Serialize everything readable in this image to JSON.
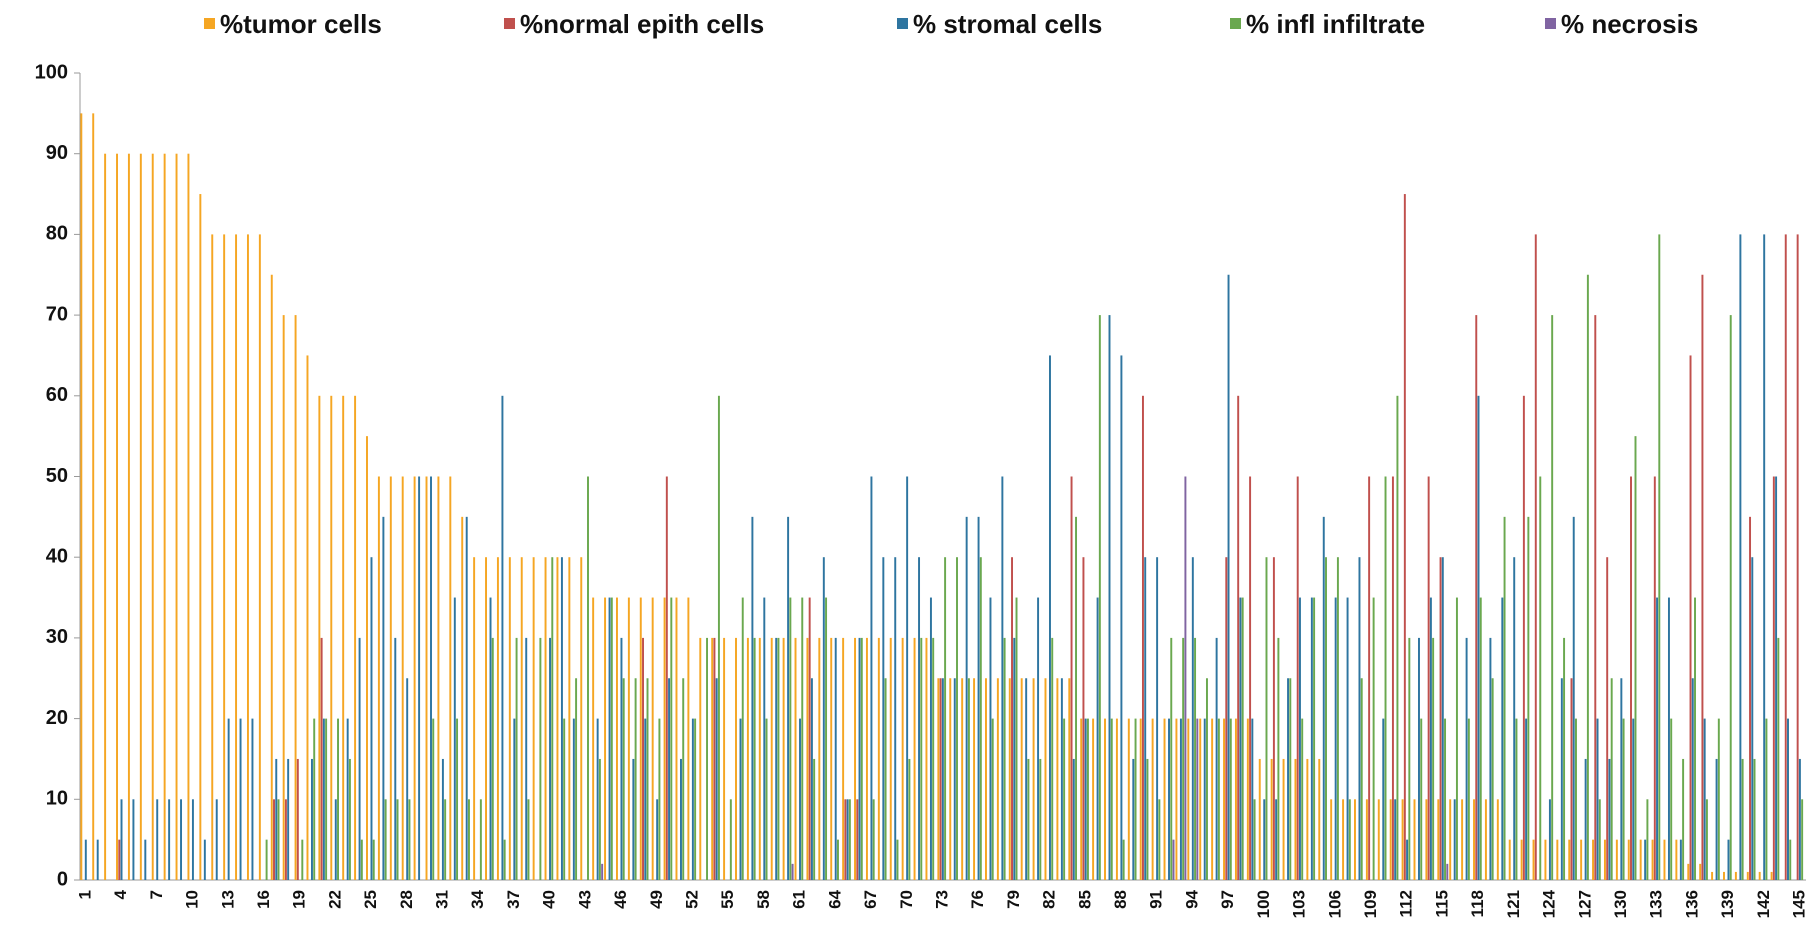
{
  "chart_data": {
    "type": "bar",
    "categories": [
      "1",
      null,
      null,
      "4",
      null,
      null,
      "7",
      null,
      null,
      "10",
      null,
      null,
      "13",
      null,
      null,
      "16",
      null,
      null,
      "19",
      null,
      null,
      "22",
      null,
      null,
      "25",
      null,
      null,
      "28",
      null,
      null,
      "31",
      null,
      null,
      "34",
      null,
      null,
      "37",
      null,
      null,
      "40",
      null,
      null,
      "43",
      null,
      null,
      "46",
      null,
      null,
      "49",
      null,
      null,
      "52",
      null,
      null,
      "55",
      null,
      null,
      "58",
      null,
      null,
      "61",
      null,
      null,
      "64",
      null,
      null,
      "67",
      null,
      null,
      "70",
      null,
      null,
      "73",
      null,
      null,
      "76",
      null,
      null,
      "79",
      null,
      null,
      "82",
      null,
      null,
      "85",
      null,
      null,
      "88",
      null,
      null,
      "91",
      null,
      null,
      "94",
      null,
      null,
      "97",
      null,
      null,
      "100",
      null,
      null,
      "103",
      null,
      null,
      "106",
      null,
      null,
      "109",
      null,
      null,
      "112",
      null,
      null,
      "115",
      null,
      null,
      "118",
      null,
      null,
      "121",
      null,
      null,
      "124",
      null,
      null,
      "127",
      null,
      null,
      "130",
      null,
      null,
      "133",
      null,
      null,
      "136",
      null,
      null,
      "139",
      null,
      null,
      "142",
      null,
      null,
      "145"
    ],
    "series": [
      {
        "name": "%tumor cells",
        "color": "#f5a623",
        "values": [
          95,
          95,
          90,
          90,
          90,
          90,
          90,
          90,
          90,
          90,
          85,
          80,
          80,
          80,
          80,
          80,
          75,
          70,
          70,
          65,
          60,
          60,
          60,
          60,
          55,
          50,
          50,
          50,
          50,
          50,
          50,
          50,
          45,
          40,
          40,
          40,
          40,
          40,
          40,
          40,
          40,
          40,
          40,
          35,
          35,
          35,
          35,
          35,
          35,
          35,
          35,
          35,
          30,
          30,
          30,
          30,
          30,
          30,
          30,
          30,
          30,
          30,
          30,
          30,
          30,
          30,
          30,
          30,
          30,
          30,
          30,
          30,
          25,
          25,
          25,
          25,
          25,
          25,
          25,
          25,
          25,
          25,
          25,
          25,
          20,
          20,
          20,
          20,
          20,
          20,
          20,
          20,
          20,
          20,
          20,
          20,
          20,
          20,
          20,
          15,
          15,
          15,
          15,
          15,
          15,
          10,
          10,
          10,
          10,
          10,
          10,
          10,
          10,
          10,
          10,
          10,
          10,
          10,
          10,
          10,
          5,
          5,
          5,
          5,
          5,
          5,
          5,
          5,
          5,
          5,
          5,
          5,
          5,
          5,
          5,
          2,
          2,
          1,
          1,
          1,
          1,
          1,
          1,
          0,
          0
        ]
      },
      {
        "name": "%normal epith cells",
        "color": "#c0504d",
        "values": [
          0,
          0,
          0,
          5,
          0,
          0,
          0,
          0,
          0,
          0,
          0,
          0,
          0,
          0,
          0,
          0,
          10,
          10,
          15,
          0,
          30,
          0,
          0,
          0,
          0,
          0,
          0,
          0,
          0,
          0,
          0,
          0,
          0,
          0,
          0,
          0,
          0,
          0,
          0,
          0,
          0,
          0,
          0,
          0,
          0,
          0,
          0,
          30,
          0,
          50,
          0,
          0,
          0,
          30,
          0,
          0,
          0,
          0,
          0,
          0,
          0,
          35,
          0,
          0,
          10,
          10,
          0,
          0,
          0,
          0,
          0,
          0,
          25,
          0,
          0,
          0,
          0,
          0,
          40,
          0,
          0,
          0,
          0,
          50,
          40,
          0,
          0,
          0,
          0,
          60,
          0,
          0,
          0,
          0,
          0,
          0,
          40,
          60,
          50,
          0,
          40,
          0,
          50,
          0,
          0,
          0,
          0,
          0,
          50,
          0,
          50,
          85,
          0,
          50,
          40,
          0,
          0,
          70,
          0,
          0,
          0,
          60,
          80,
          0,
          0,
          25,
          0,
          70,
          40,
          0,
          50,
          0,
          50,
          0,
          0,
          65,
          75,
          0,
          0,
          0,
          45,
          0,
          50,
          80,
          80
        ]
      },
      {
        "name": "% stromal cells",
        "color": "#2e75a0",
        "values": [
          5,
          5,
          0,
          10,
          10,
          5,
          10,
          10,
          10,
          10,
          5,
          10,
          20,
          20,
          20,
          0,
          15,
          15,
          0,
          15,
          20,
          10,
          20,
          30,
          40,
          45,
          30,
          25,
          50,
          50,
          15,
          35,
          45,
          0,
          35,
          60,
          20,
          30,
          0,
          30,
          40,
          20,
          0,
          20,
          35,
          30,
          15,
          20,
          10,
          25,
          15,
          20,
          0,
          25,
          0,
          20,
          45,
          35,
          30,
          45,
          20,
          25,
          40,
          30,
          10,
          30,
          50,
          40,
          40,
          50,
          40,
          35,
          25,
          25,
          45,
          45,
          35,
          50,
          30,
          25,
          35,
          65,
          25,
          15,
          20,
          35,
          70,
          65,
          15,
          40,
          40,
          20,
          20,
          40,
          20,
          30,
          75,
          35,
          20,
          10,
          10,
          25,
          35,
          35,
          45,
          35,
          35,
          40,
          0,
          20,
          10,
          5,
          30,
          35,
          40,
          10,
          30,
          60,
          30,
          35,
          40,
          20,
          0,
          10,
          25,
          45,
          15,
          20,
          15,
          25,
          20,
          5,
          35,
          35,
          5,
          25,
          20,
          15,
          5,
          80,
          40,
          80,
          50,
          20,
          15
        ]
      },
      {
        "name": "% infl infiltrate",
        "color": "#6aa84f",
        "values": [
          0,
          0,
          0,
          0,
          0,
          0,
          0,
          0,
          0,
          0,
          0,
          0,
          0,
          0,
          0,
          5,
          10,
          0,
          5,
          20,
          20,
          20,
          15,
          5,
          5,
          10,
          10,
          10,
          0,
          20,
          10,
          20,
          10,
          10,
          30,
          5,
          30,
          10,
          30,
          40,
          20,
          25,
          50,
          15,
          35,
          25,
          25,
          25,
          20,
          35,
          25,
          20,
          30,
          60,
          10,
          35,
          30,
          20,
          30,
          35,
          35,
          15,
          35,
          5,
          10,
          30,
          10,
          25,
          5,
          15,
          30,
          30,
          40,
          40,
          25,
          40,
          20,
          30,
          35,
          15,
          15,
          30,
          20,
          45,
          20,
          70,
          20,
          5,
          20,
          15,
          10,
          30,
          30,
          30,
          25,
          20,
          20,
          35,
          10,
          40,
          30,
          25,
          20,
          35,
          40,
          40,
          10,
          25,
          35,
          50,
          60,
          30,
          20,
          30,
          20,
          35,
          20,
          35,
          25,
          45,
          20,
          45,
          50,
          70,
          30,
          20,
          75,
          10,
          25,
          20,
          55,
          10,
          80,
          20,
          15,
          35,
          10,
          20,
          70,
          15,
          15,
          20,
          30,
          5,
          10
        ]
      },
      {
        "name": "% necrosis",
        "color": "#8064a2",
        "values": [
          0,
          0,
          0,
          0,
          0,
          0,
          0,
          0,
          0,
          0,
          0,
          0,
          0,
          0,
          0,
          0,
          0,
          0,
          0,
          0,
          0,
          0,
          0,
          0,
          0,
          0,
          0,
          0,
          0,
          0,
          0,
          0,
          0,
          0,
          0,
          0,
          0,
          0,
          0,
          0,
          0,
          0,
          0,
          2,
          0,
          0,
          0,
          0,
          0,
          0,
          0,
          0,
          0,
          0,
          0,
          0,
          0,
          0,
          0,
          2,
          0,
          0,
          0,
          0,
          0,
          0,
          0,
          0,
          0,
          0,
          0,
          0,
          0,
          0,
          0,
          0,
          0,
          0,
          0,
          0,
          0,
          0,
          0,
          0,
          0,
          0,
          0,
          0,
          0,
          0,
          0,
          5,
          50,
          20,
          0,
          0,
          0,
          0,
          0,
          0,
          0,
          0,
          0,
          0,
          0,
          0,
          0,
          0,
          0,
          0,
          0,
          0,
          0,
          0,
          2,
          0,
          0,
          0,
          0,
          0,
          0,
          0,
          0,
          0,
          0,
          0,
          0,
          0,
          0,
          0,
          0,
          0,
          0,
          0,
          0,
          0,
          0,
          0,
          0,
          0,
          0,
          0,
          0,
          0,
          0
        ]
      }
    ],
    "ylim": [
      0,
      100
    ],
    "yticks": [
      0,
      10,
      20,
      30,
      40,
      50,
      60,
      70,
      80,
      90,
      100
    ],
    "grid": false,
    "legend": "top"
  }
}
